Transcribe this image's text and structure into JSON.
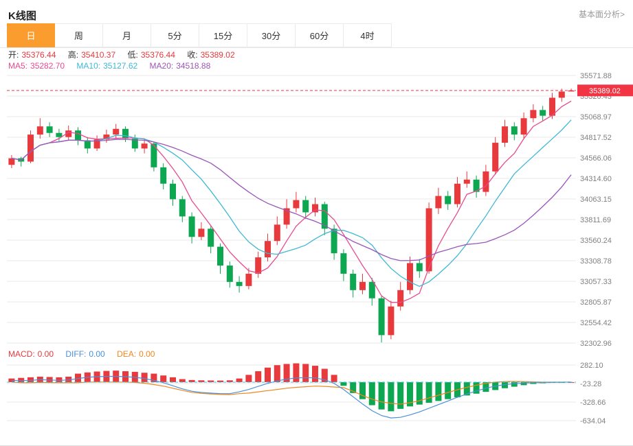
{
  "header": {
    "title": "K线图",
    "link": "基本面分析>"
  },
  "tabs": {
    "active_index": 0,
    "items": [
      {
        "label": "日"
      },
      {
        "label": "周"
      },
      {
        "label": "月"
      },
      {
        "label": "5分"
      },
      {
        "label": "15分"
      },
      {
        "label": "30分"
      },
      {
        "label": "60分"
      },
      {
        "label": "4时"
      }
    ]
  },
  "ohlc": {
    "open_label": "开:",
    "open": "35376.44",
    "high_label": "高:",
    "high": "35410.37",
    "low_label": "低:",
    "low": "35376.44",
    "close_label": "收:",
    "close": "35389.02"
  },
  "ma": {
    "ma5_label": "MA5:",
    "ma5": "35282.70",
    "ma10_label": "MA10:",
    "ma10": "35127.62",
    "ma20_label": "MA20:",
    "ma20": "34518.88"
  },
  "price_badge": "35389.02",
  "macd_header": {
    "macd_label": "MACD:",
    "macd": "0.00",
    "diff_label": "DIFF:",
    "diff": "0.00",
    "dea_label": "DEA:",
    "dea": "0.00"
  },
  "colors": {
    "up": "#e8393d",
    "down": "#0ca750",
    "ma5": "#e84a8f",
    "ma10": "#3fb8d4",
    "ma20": "#9a55b8",
    "price_line": "#f23545",
    "diff": "#4a90d9",
    "dea": "#f0861e",
    "grid": "#e9e9e9",
    "axis_text": "#808080",
    "dashed_cyan": "#3fc0dc",
    "accent_orange": "#fa9d2e"
  },
  "chart_data": {
    "type": "candlestick",
    "title": "K线图",
    "timeframe": "日",
    "legend": [
      "MA5",
      "MA10",
      "MA20"
    ],
    "current_price": 35389.02,
    "y_axis_labels": [
      "35571.88",
      "35320.43",
      "35068.97",
      "34817.52",
      "34566.06",
      "34314.60",
      "34063.15",
      "33811.69",
      "33560.24",
      "33308.78",
      "33057.33",
      "32805.87",
      "32554.42",
      "32302.96"
    ],
    "ylim": [
      32302.96,
      35571.88
    ],
    "ma_periods": [
      5,
      10,
      20
    ],
    "candle_format": "[open, high, low, close]",
    "candles": [
      [
        34480,
        34600,
        34440,
        34560
      ],
      [
        34560,
        34580,
        34460,
        34520
      ],
      [
        34520,
        34900,
        34500,
        34850
      ],
      [
        34850,
        35050,
        34800,
        34950
      ],
      [
        34950,
        35000,
        34820,
        34870
      ],
      [
        34870,
        34920,
        34770,
        34820
      ],
      [
        34820,
        34960,
        34780,
        34900
      ],
      [
        34900,
        34940,
        34720,
        34780
      ],
      [
        34780,
        34820,
        34620,
        34680
      ],
      [
        34680,
        34840,
        34650,
        34790
      ],
      [
        34790,
        34910,
        34750,
        34850
      ],
      [
        34850,
        34980,
        34800,
        34920
      ],
      [
        34920,
        34950,
        34760,
        34800
      ],
      [
        34800,
        34850,
        34640,
        34680
      ],
      [
        34680,
        34800,
        34620,
        34740
      ],
      [
        34740,
        34760,
        34400,
        34450
      ],
      [
        34450,
        34500,
        34180,
        34250
      ],
      [
        34250,
        34300,
        33980,
        34060
      ],
      [
        34060,
        34100,
        33780,
        33850
      ],
      [
        33850,
        33900,
        33520,
        33600
      ],
      [
        33600,
        33780,
        33560,
        33700
      ],
      [
        33700,
        33740,
        33400,
        33480
      ],
      [
        33480,
        33520,
        33150,
        33250
      ],
      [
        33250,
        33300,
        32980,
        33050
      ],
      [
        33050,
        33120,
        32920,
        33000
      ],
      [
        33000,
        33220,
        32960,
        33150
      ],
      [
        33150,
        33420,
        33100,
        33350
      ],
      [
        33350,
        33640,
        33300,
        33550
      ],
      [
        33550,
        33850,
        33500,
        33750
      ],
      [
        33750,
        34060,
        33700,
        33950
      ],
      [
        33950,
        34150,
        33900,
        34050
      ],
      [
        34050,
        34100,
        33820,
        33900
      ],
      [
        33900,
        34080,
        33850,
        34000
      ],
      [
        34000,
        34030,
        33620,
        33700
      ],
      [
        33700,
        33750,
        33320,
        33400
      ],
      [
        33400,
        33450,
        33060,
        33150
      ],
      [
        33150,
        33200,
        32860,
        32950
      ],
      [
        32950,
        33150,
        32900,
        33050
      ],
      [
        33050,
        33100,
        32760,
        32850
      ],
      [
        32850,
        32880,
        32310,
        32400
      ],
      [
        32400,
        32820,
        32350,
        32750
      ],
      [
        32750,
        33050,
        32700,
        32950
      ],
      [
        32950,
        33360,
        32900,
        33280
      ],
      [
        33280,
        33330,
        33100,
        33180
      ],
      [
        33180,
        34020,
        33150,
        33950
      ],
      [
        33950,
        34200,
        33880,
        34100
      ],
      [
        34100,
        34160,
        33930,
        34000
      ],
      [
        34000,
        34330,
        33960,
        34250
      ],
      [
        34250,
        34400,
        34200,
        34300
      ],
      [
        34300,
        34350,
        34080,
        34150
      ],
      [
        34150,
        34480,
        34100,
        34400
      ],
      [
        34400,
        34820,
        34360,
        34750
      ],
      [
        34750,
        35030,
        34700,
        34950
      ],
      [
        34950,
        35000,
        34780,
        34850
      ],
      [
        34850,
        35120,
        34800,
        35050
      ],
      [
        35050,
        35220,
        35000,
        35150
      ],
      [
        35150,
        35200,
        35020,
        35080
      ],
      [
        35080,
        35360,
        35040,
        35300
      ],
      [
        35300,
        35410,
        35250,
        35376
      ],
      [
        35376.44,
        35410.37,
        35376.44,
        35389.02
      ]
    ],
    "macd_panel": {
      "y_axis_labels": [
        "282.10",
        "-23.28",
        "-328.66",
        "-634.04"
      ],
      "histogram": [
        60,
        70,
        80,
        90,
        85,
        80,
        90,
        140,
        160,
        175,
        185,
        190,
        180,
        170,
        155,
        140,
        110,
        80,
        50,
        35,
        30,
        28,
        26,
        30,
        60,
        120,
        180,
        240,
        280,
        300,
        310,
        300,
        270,
        220,
        120,
        -60,
        -180,
        -280,
        -380,
        -450,
        -480,
        -440,
        -400,
        -370,
        -340,
        -310,
        -280,
        -250,
        -220,
        -190,
        -160,
        -130,
        -100,
        -75,
        -50,
        -30,
        -18,
        -10,
        -5,
        0
      ],
      "diff": [
        30,
        25,
        30,
        40,
        35,
        30,
        35,
        60,
        80,
        90,
        95,
        95,
        90,
        80,
        60,
        30,
        -10,
        -60,
        -110,
        -150,
        -170,
        -180,
        -190,
        -190,
        -160,
        -120,
        -70,
        -20,
        20,
        50,
        70,
        75,
        70,
        40,
        -20,
        -120,
        -240,
        -360,
        -470,
        -550,
        -590,
        -580,
        -540,
        -490,
        -430,
        -370,
        -310,
        -250,
        -195,
        -145,
        -100,
        -65,
        -40,
        -25,
        -15,
        -10,
        -8,
        -5,
        -3,
        0
      ],
      "dea": [
        0,
        -10,
        -10,
        -5,
        -8,
        -10,
        -10,
        -10,
        0,
        3,
        3,
        0,
        0,
        -5,
        -18,
        -40,
        -65,
        -100,
        -135,
        -168,
        -185,
        -194,
        -203,
        -205,
        -190,
        -180,
        -160,
        -140,
        -120,
        -100,
        -85,
        -75,
        -65,
        -70,
        -80,
        -90,
        -150,
        -220,
        -280,
        -325,
        -350,
        -360,
        -340,
        -305,
        -260,
        -215,
        -170,
        -125,
        -85,
        -50,
        -20,
        0,
        10,
        13,
        10,
        5,
        1,
        0,
        0,
        0
      ]
    }
  }
}
